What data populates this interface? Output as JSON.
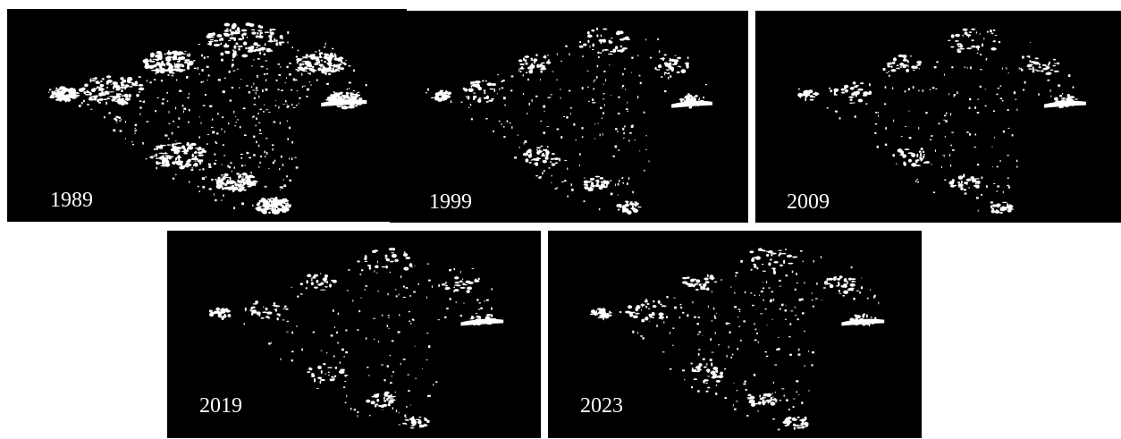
{
  "panels": [
    {
      "id": "p1989",
      "year": "1989",
      "density": 1.0
    },
    {
      "id": "p1999",
      "year": "1999",
      "density": 0.55
    },
    {
      "id": "p2009",
      "year": "2009",
      "density": 0.45
    },
    {
      "id": "p2019",
      "year": "2019",
      "density": 0.4
    },
    {
      "id": "p2023",
      "year": "2023",
      "density": 0.5
    }
  ],
  "colors": {
    "background": "#000000",
    "foreground": "#ffffff"
  }
}
